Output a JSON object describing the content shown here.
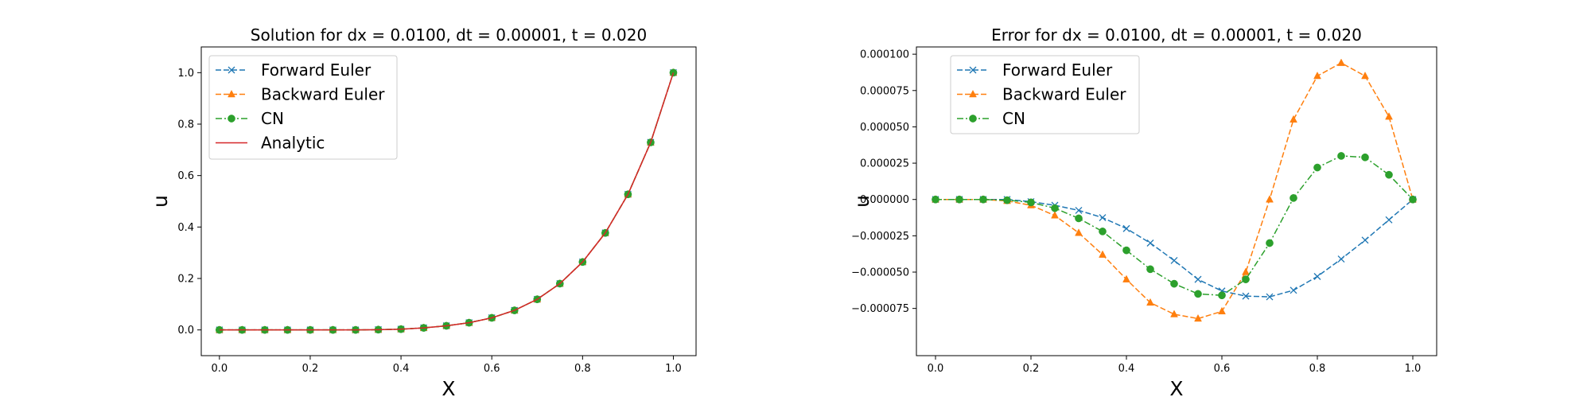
{
  "chart_data": [
    {
      "type": "line",
      "title": "Solution for dx = 0.0100, dt = 0.00001, t = 0.020",
      "xlabel": "X",
      "ylabel": "u",
      "xlim": [
        -0.04,
        1.05
      ],
      "ylim": [
        -0.1,
        1.1
      ],
      "xticks": [
        0.0,
        0.2,
        0.4,
        0.6,
        0.8,
        1.0
      ],
      "xtick_labels": [
        "0.0",
        "0.2",
        "0.4",
        "0.6",
        "0.8",
        "1.0"
      ],
      "yticks": [
        0.0,
        0.2,
        0.4,
        0.6,
        0.8,
        1.0
      ],
      "ytick_labels": [
        "0.0",
        "0.2",
        "0.4",
        "0.6",
        "0.8",
        "1.0"
      ],
      "grid": false,
      "legend_position": "top-left",
      "x": [
        0.0,
        0.05,
        0.1,
        0.15,
        0.2,
        0.25,
        0.3,
        0.35,
        0.4,
        0.45,
        0.5,
        0.55,
        0.6,
        0.65,
        0.7,
        0.75,
        0.8,
        0.85,
        0.9,
        0.95,
        1.0
      ],
      "series": [
        {
          "name": "Forward Euler",
          "color": "#1f77b4",
          "marker": "x",
          "linestyle": "dashed",
          "values": [
            0.0,
            0.0,
            0.0,
            0.0,
            0.0,
            0.0,
            0.0,
            0.001,
            0.003,
            0.008,
            0.016,
            0.028,
            0.047,
            0.076,
            0.119,
            0.18,
            0.264,
            0.377,
            0.527,
            0.729,
            1.0
          ]
        },
        {
          "name": "Backward Euler",
          "color": "#ff7f0e",
          "marker": "triangle",
          "linestyle": "dashed",
          "values": [
            0.0,
            0.0,
            0.0,
            0.0,
            0.0,
            0.0,
            0.0,
            0.001,
            0.003,
            0.008,
            0.016,
            0.028,
            0.047,
            0.076,
            0.119,
            0.18,
            0.264,
            0.377,
            0.527,
            0.729,
            1.0
          ]
        },
        {
          "name": "CN",
          "color": "#2ca02c",
          "marker": "circle",
          "linestyle": "dashdot",
          "values": [
            0.0,
            0.0,
            0.0,
            0.0,
            0.0,
            0.0,
            0.0,
            0.001,
            0.003,
            0.008,
            0.016,
            0.028,
            0.047,
            0.076,
            0.119,
            0.18,
            0.264,
            0.377,
            0.527,
            0.729,
            1.0
          ]
        },
        {
          "name": "Analytic",
          "color": "#d62728",
          "marker": "none",
          "linestyle": "solid",
          "values": [
            0.0,
            0.0,
            0.0,
            0.0,
            0.0,
            0.0,
            0.0,
            0.001,
            0.003,
            0.008,
            0.016,
            0.028,
            0.047,
            0.076,
            0.119,
            0.18,
            0.264,
            0.377,
            0.527,
            0.729,
            1.0
          ]
        }
      ]
    },
    {
      "type": "line",
      "title": "Error for dx = 0.0100, dt = 0.00001, t = 0.020",
      "xlabel": "X",
      "ylabel": "u",
      "xlim": [
        -0.04,
        1.05
      ],
      "ylim": [
        -0.0001075,
        0.000105
      ],
      "xticks": [
        0.0,
        0.2,
        0.4,
        0.6,
        0.8,
        1.0
      ],
      "xtick_labels": [
        "0.0",
        "0.2",
        "0.4",
        "0.6",
        "0.8",
        "1.0"
      ],
      "yticks": [
        -7.5e-05,
        -5e-05,
        -2.5e-05,
        0.0,
        2.5e-05,
        5e-05,
        7.5e-05,
        0.0001
      ],
      "ytick_labels": [
        "−0.000075",
        "−0.000050",
        "−0.000025",
        "0.000000",
        "0.000025",
        "0.000050",
        "0.000075",
        "0.000100"
      ],
      "grid": false,
      "legend_position": "top-left",
      "x": [
        0.0,
        0.05,
        0.1,
        0.15,
        0.2,
        0.25,
        0.3,
        0.35,
        0.4,
        0.45,
        0.5,
        0.55,
        0.6,
        0.65,
        0.7,
        0.75,
        0.8,
        0.85,
        0.9,
        0.95,
        1.0
      ],
      "series": [
        {
          "name": "Forward Euler",
          "color": "#1f77b4",
          "marker": "x",
          "linestyle": "dashed",
          "values": [
            0.0,
            0.0,
            0.0,
            0.0,
            -1.5e-06,
            -4e-06,
            -7.5e-06,
            -1.25e-05,
            -2e-05,
            -3e-05,
            -4.2e-05,
            -5.5e-05,
            -6.3e-05,
            -6.65e-05,
            -6.7e-05,
            -6.25e-05,
            -5.3e-05,
            -4.1e-05,
            -2.8e-05,
            -1.4e-05,
            0.0
          ]
        },
        {
          "name": "Backward Euler",
          "color": "#ff7f0e",
          "marker": "triangle",
          "linestyle": "dashed",
          "values": [
            0.0,
            0.0,
            0.0,
            -1e-06,
            -4e-06,
            -1.1e-05,
            -2.3e-05,
            -3.8e-05,
            -5.5e-05,
            -7.1e-05,
            -7.9e-05,
            -8.2e-05,
            -7.7e-05,
            -5e-05,
            0.0,
            5.5e-05,
            8.5e-05,
            9.4e-05,
            8.5e-05,
            5.7e-05,
            0.0
          ]
        },
        {
          "name": "CN",
          "color": "#2ca02c",
          "marker": "circle",
          "linestyle": "dashdot",
          "values": [
            0.0,
            0.0,
            0.0,
            -5e-07,
            -2e-06,
            -6e-06,
            -1.3e-05,
            -2.2e-05,
            -3.5e-05,
            -4.8e-05,
            -5.8e-05,
            -6.5e-05,
            -6.6e-05,
            -5.5e-05,
            -3e-05,
            1e-06,
            2.2e-05,
            3e-05,
            2.9e-05,
            1.7e-05,
            0.0
          ]
        }
      ]
    }
  ]
}
